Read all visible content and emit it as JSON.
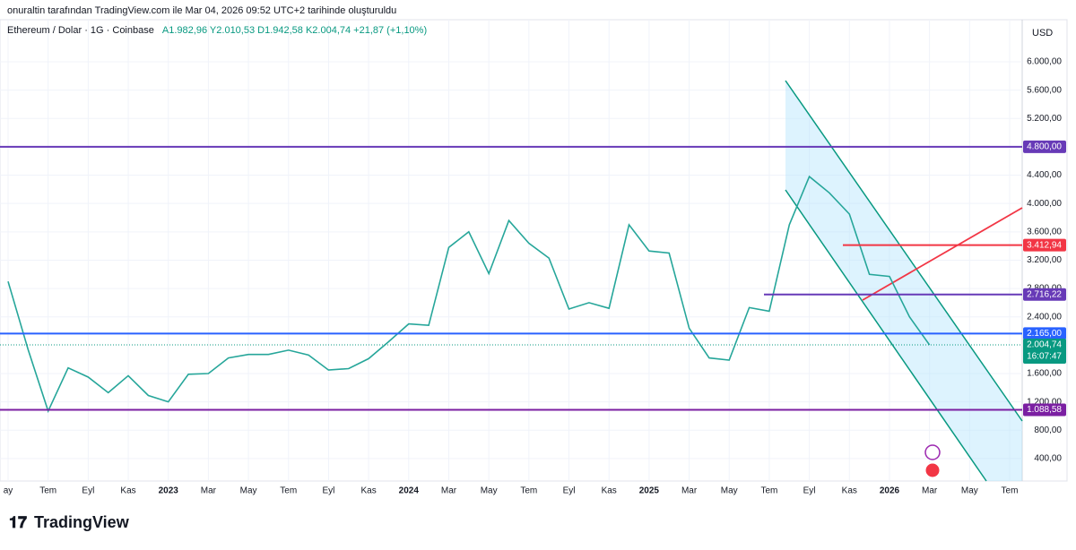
{
  "header": {
    "credit": "onuraltin tarafından TradingView.com ile Mar 04, 2026 09:52 UTC+2 tarihinde oluşturuldu",
    "symbol": "Ethereum / Dolar · 1G · Coinbase",
    "ohlc": "A1.982,96 Y2.010,53 D1.942,58 K2.004,74 +21,87 (+1,10%)"
  },
  "footer": {
    "brand": "TradingView"
  },
  "chart_data": {
    "type": "line",
    "currency": "USD",
    "series": [
      {
        "name": "Ethereum / Dolar",
        "color": "#26a69a",
        "x": [
          "2022-05",
          "2022-06",
          "2022-07",
          "2022-08",
          "2022-09",
          "2022-10",
          "2022-11",
          "2022-12",
          "2023-01",
          "2023-02",
          "2023-03",
          "2023-04",
          "2023-05",
          "2023-06",
          "2023-07",
          "2023-08",
          "2023-09",
          "2023-10",
          "2023-11",
          "2023-12",
          "2024-01",
          "2024-02",
          "2024-03",
          "2024-04",
          "2024-05",
          "2024-06",
          "2024-07",
          "2024-08",
          "2024-09",
          "2024-10",
          "2024-11",
          "2024-12",
          "2025-01",
          "2025-02",
          "2025-03",
          "2025-04",
          "2025-05",
          "2025-06",
          "2025-07",
          "2025-08",
          "2025-09",
          "2025-10",
          "2025-11",
          "2025-12",
          "2026-01",
          "2026-02",
          "2026-03"
        ],
        "values": [
          2900,
          1940,
          1070,
          1680,
          1550,
          1330,
          1570,
          1290,
          1200,
          1590,
          1600,
          1820,
          1870,
          1870,
          1930,
          1860,
          1650,
          1670,
          1810,
          2050,
          2300,
          2280,
          3380,
          3600,
          3010,
          3760,
          3440,
          3230,
          2510,
          2600,
          2520,
          3700,
          3330,
          3300,
          2240,
          1820,
          1790,
          2530,
          2480,
          3700,
          4380,
          4150,
          3850,
          3000,
          2970,
          2400,
          2004.74
        ]
      }
    ],
    "current_price": {
      "value": 2004.74,
      "label": "2.004,74",
      "countdown": "16:07:47",
      "color": "#089981"
    },
    "levels": [
      {
        "value": 4800,
        "label": "4.800,00",
        "color": "#673ab7"
      },
      {
        "value": 3412.94,
        "label": "3.412,94",
        "color": "#f23645"
      },
      {
        "value": 2716.22,
        "label": "2.716,22",
        "color": "#673ab7"
      },
      {
        "value": 2165,
        "label": "2.165,00",
        "color": "#2962ff"
      },
      {
        "value": 1088.58,
        "label": "1.088,58",
        "color": "#7b1fa2"
      }
    ],
    "ylim": [
      83,
      6594
    ],
    "yticks": [
      {
        "value": 400,
        "label": "400,00"
      },
      {
        "value": 800,
        "label": "800,00"
      },
      {
        "value": 1200,
        "label": "1.200,00"
      },
      {
        "value": 1600,
        "label": "1.600,00"
      },
      {
        "value": 2400,
        "label": "2.400,00"
      },
      {
        "value": 2800,
        "label": "2.800,00"
      },
      {
        "value": 3200,
        "label": "3.200,00"
      },
      {
        "value": 3600,
        "label": "3.600,00"
      },
      {
        "value": 4000,
        "label": "4.000,00"
      },
      {
        "value": 4400,
        "label": "4.400,00"
      },
      {
        "value": 5200,
        "label": "5.200,00"
      },
      {
        "value": 5600,
        "label": "5.600,00"
      },
      {
        "value": 6000,
        "label": "6.000,00"
      }
    ],
    "xlim": [
      "2022-05",
      "2026-07"
    ],
    "xticks": [
      {
        "value": "2022-05",
        "label": "ay"
      },
      {
        "value": "2022-07",
        "label": "Tem"
      },
      {
        "value": "2022-09",
        "label": "Eyl"
      },
      {
        "value": "2022-11",
        "label": "Kas"
      },
      {
        "value": "2023-01",
        "label": "2023"
      },
      {
        "value": "2023-03",
        "label": "Mar"
      },
      {
        "value": "2023-05",
        "label": "May"
      },
      {
        "value": "2023-07",
        "label": "Tem"
      },
      {
        "value": "2023-09",
        "label": "Eyl"
      },
      {
        "value": "2023-11",
        "label": "Kas"
      },
      {
        "value": "2024-01",
        "label": "2024"
      },
      {
        "value": "2024-03",
        "label": "Mar"
      },
      {
        "value": "2024-05",
        "label": "May"
      },
      {
        "value": "2024-07",
        "label": "Tem"
      },
      {
        "value": "2024-09",
        "label": "Eyl"
      },
      {
        "value": "2024-11",
        "label": "Kas"
      },
      {
        "value": "2025-01",
        "label": "2025"
      },
      {
        "value": "2025-03",
        "label": "Mar"
      },
      {
        "value": "2025-05",
        "label": "May"
      },
      {
        "value": "2025-07",
        "label": "Tem"
      },
      {
        "value": "2025-09",
        "label": "Eyl"
      },
      {
        "value": "2025-11",
        "label": "Kas"
      },
      {
        "value": "2026-01",
        "label": "2026"
      },
      {
        "value": "2026-03",
        "label": "Mar"
      },
      {
        "value": "2026-05",
        "label": "May"
      },
      {
        "value": "2026-07",
        "label": "Tem"
      }
    ],
    "grid": true
  }
}
